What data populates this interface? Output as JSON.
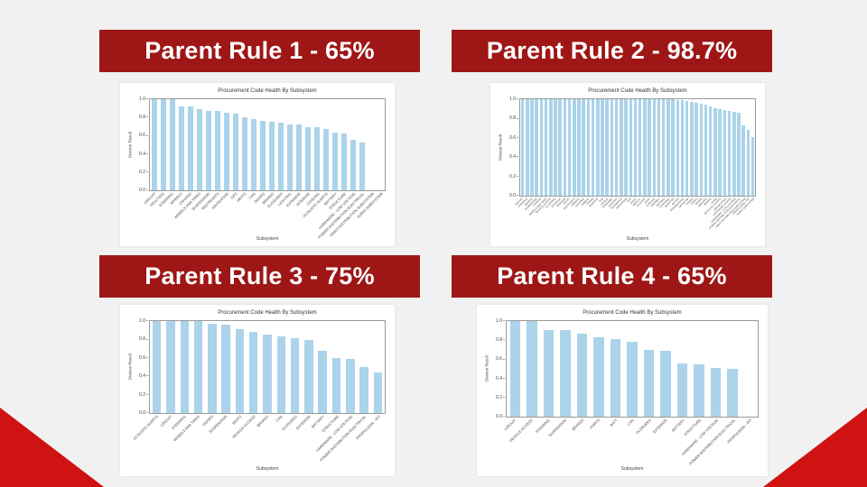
{
  "slide": {
    "background_color": "#f1f1f2",
    "banner_color": "#9e1616",
    "accent_triangle_color": "#cf1313",
    "bar_color": "#abd3ea"
  },
  "banners": [
    {
      "label": "Parent Rule 1 - 65%"
    },
    {
      "label": "Parent Rule 2 - 98.7%"
    },
    {
      "label": "Parent Rule 3 - 75%"
    },
    {
      "label": "Parent Rule 4 - 65%"
    }
  ],
  "chart_data": [
    {
      "type": "bar",
      "title": "Procurement Code Health By Subsystem",
      "xlabel": "Subsystem",
      "ylabel": "Division Result",
      "ylim": [
        0,
        1.0
      ],
      "yticks": [
        "1.0",
        "0.8",
        "0.6",
        "0.4",
        "0.2",
        "0.0"
      ],
      "legend": "none",
      "grid": false,
      "categories": [
        "CIRCUIT",
        "TRACTION",
        "STEERING",
        "WHEELS",
        "CHASSIS",
        "WHEELS AND TIRES",
        "SUSPENSION",
        "RESTRAINTS",
        "NAVIGATION",
        "GPS",
        "SEATS",
        "CAN",
        "DOORS",
        "BRAKES",
        "CLOSURES",
        "LIGHTING",
        "EXTERIOR",
        "INTERIOR",
        "COOLING",
        "ACOUSTIC ALERTS",
        "BATTERY",
        "STRUCTURE",
        "HARDWARE - LOW VOLTAGE",
        "POWER DISTRIBUTION ELECTRICAL",
        "VIDEO DISTRIBUTION SUBSYSTEM",
        "AUDIO SUBSYSTEM"
      ],
      "values": [
        1.0,
        1.0,
        1.0,
        0.92,
        0.92,
        0.89,
        0.87,
        0.87,
        0.85,
        0.84,
        0.8,
        0.78,
        0.76,
        0.75,
        0.74,
        0.72,
        0.72,
        0.69,
        0.69,
        0.67,
        0.63,
        0.62,
        0.55,
        0.52,
        0.0,
        0.0
      ]
    },
    {
      "type": "bar",
      "title": "Procurement Code Health By Subsystem",
      "xlabel": "Subsystem",
      "ylabel": "Division Result",
      "ylim": [
        0,
        1.0
      ],
      "yticks": [
        "1.0",
        "0.8",
        "0.6",
        "0.4",
        "0.2",
        "0.0"
      ],
      "legend": "none",
      "grid": false,
      "categories": [
        "CIRCUIT",
        "STEERING",
        "BRAKES",
        "SUSPENSION",
        "CHASSIS",
        "WHEELS AND TIRES",
        "VEHICLE ACCESS",
        "CLOSURES",
        "EXTERIOR",
        "INTERIOR",
        "SEATS",
        "RESTRAINTS",
        "AIRBAGS",
        "LIGHTING",
        "CAMERA",
        "RADAR",
        "SENSORS",
        "CAN",
        "LIN BUS",
        "ETHERNET",
        "GATEWAY",
        "TELEMATICS",
        "NAVIGATION",
        "GPS",
        "AUDIO",
        "DISPLAY",
        "CLUSTER",
        "HVAC",
        "COOLING",
        "THERMAL",
        "BATTERY",
        "CHARGING",
        "INVERTER",
        "MOTOR",
        "TRANSMISSION",
        "DRIVELINE",
        "PUMPS",
        "PORTS",
        "DOORS",
        "MIRRORS",
        "WIPERS",
        "HORN",
        "ACOUSTIC ALERTS",
        "DIAGNOSTICS",
        "SOFTWARE UPDATE",
        "HARDWARE - LOW VOLTAGE",
        "POWER DISTRIBUTION ELECTRICAL",
        "VIDEO DISTRIBUTION SUBSYSTEM",
        "PROPULSION - INT",
        "AUDIO SUBSYSTEM"
      ],
      "values": [
        1.0,
        1.0,
        1.0,
        1.0,
        1.0,
        1.0,
        1.0,
        1.0,
        1.0,
        1.0,
        1.0,
        1.0,
        1.0,
        1.0,
        1.0,
        1.0,
        1.0,
        1.0,
        1.0,
        1.0,
        1.0,
        1.0,
        1.0,
        1.0,
        1.0,
        1.0,
        1.0,
        1.0,
        1.0,
        1.0,
        1.0,
        1.0,
        1.0,
        0.99,
        0.99,
        0.98,
        0.97,
        0.96,
        0.95,
        0.94,
        0.93,
        0.91,
        0.9,
        0.89,
        0.88,
        0.87,
        0.86,
        0.73,
        0.68,
        0.61
      ]
    },
    {
      "type": "bar",
      "title": "Procurement Code Health By Subsystem",
      "xlabel": "Subsystem",
      "ylabel": "Division Result",
      "ylim": [
        0,
        1.0
      ],
      "yticks": [
        "1.0",
        "0.8",
        "0.6",
        "0.4",
        "0.2",
        "0.0"
      ],
      "legend": "none",
      "grid": false,
      "categories": [
        "ACOUSTIC ALERTS",
        "CIRCUIT",
        "STEERING",
        "WHEELS AND TIRES",
        "DOORS",
        "SUSPENSION",
        "SEATS",
        "VEHICLE ACCESS",
        "BRAKES",
        "CAN",
        "CLOSURES",
        "EXTERIOR",
        "BATTERY",
        "STRUCTURE",
        "HARDWARE - LOW VOLTAGE",
        "POWER DISTRIBUTION ELECTRICAL",
        "PROPULSION - INT"
      ],
      "values": [
        1.0,
        1.0,
        1.0,
        1.0,
        0.97,
        0.96,
        0.91,
        0.88,
        0.85,
        0.83,
        0.81,
        0.79,
        0.68,
        0.6,
        0.59,
        0.5,
        0.44
      ]
    },
    {
      "type": "bar",
      "title": "Procurement Code Health By Subsystem",
      "xlabel": "Subsystem",
      "ylabel": "Division Result",
      "ylim": [
        0,
        1.0
      ],
      "yticks": [
        "1.0",
        "0.8",
        "0.6",
        "0.4",
        "0.2",
        "0.0"
      ],
      "legend": "none",
      "grid": false,
      "categories": [
        "CIRCUIT",
        "VEHICLE ACCESS",
        "STEERING",
        "SUSPENSION",
        "BRAKES",
        "PORTS",
        "BATT",
        "CAN",
        "CLOSURES",
        "EXTERIOR",
        "BATTERY",
        "STRUCTURE",
        "HARDWARE - LOW VOLTAGE",
        "POWER DISTRIBUTION ELECTRICAL",
        "PROPULSION - INT"
      ],
      "values": [
        1.0,
        1.0,
        0.91,
        0.91,
        0.87,
        0.83,
        0.81,
        0.78,
        0.7,
        0.69,
        0.56,
        0.55,
        0.51,
        0.5,
        0.0
      ]
    }
  ]
}
